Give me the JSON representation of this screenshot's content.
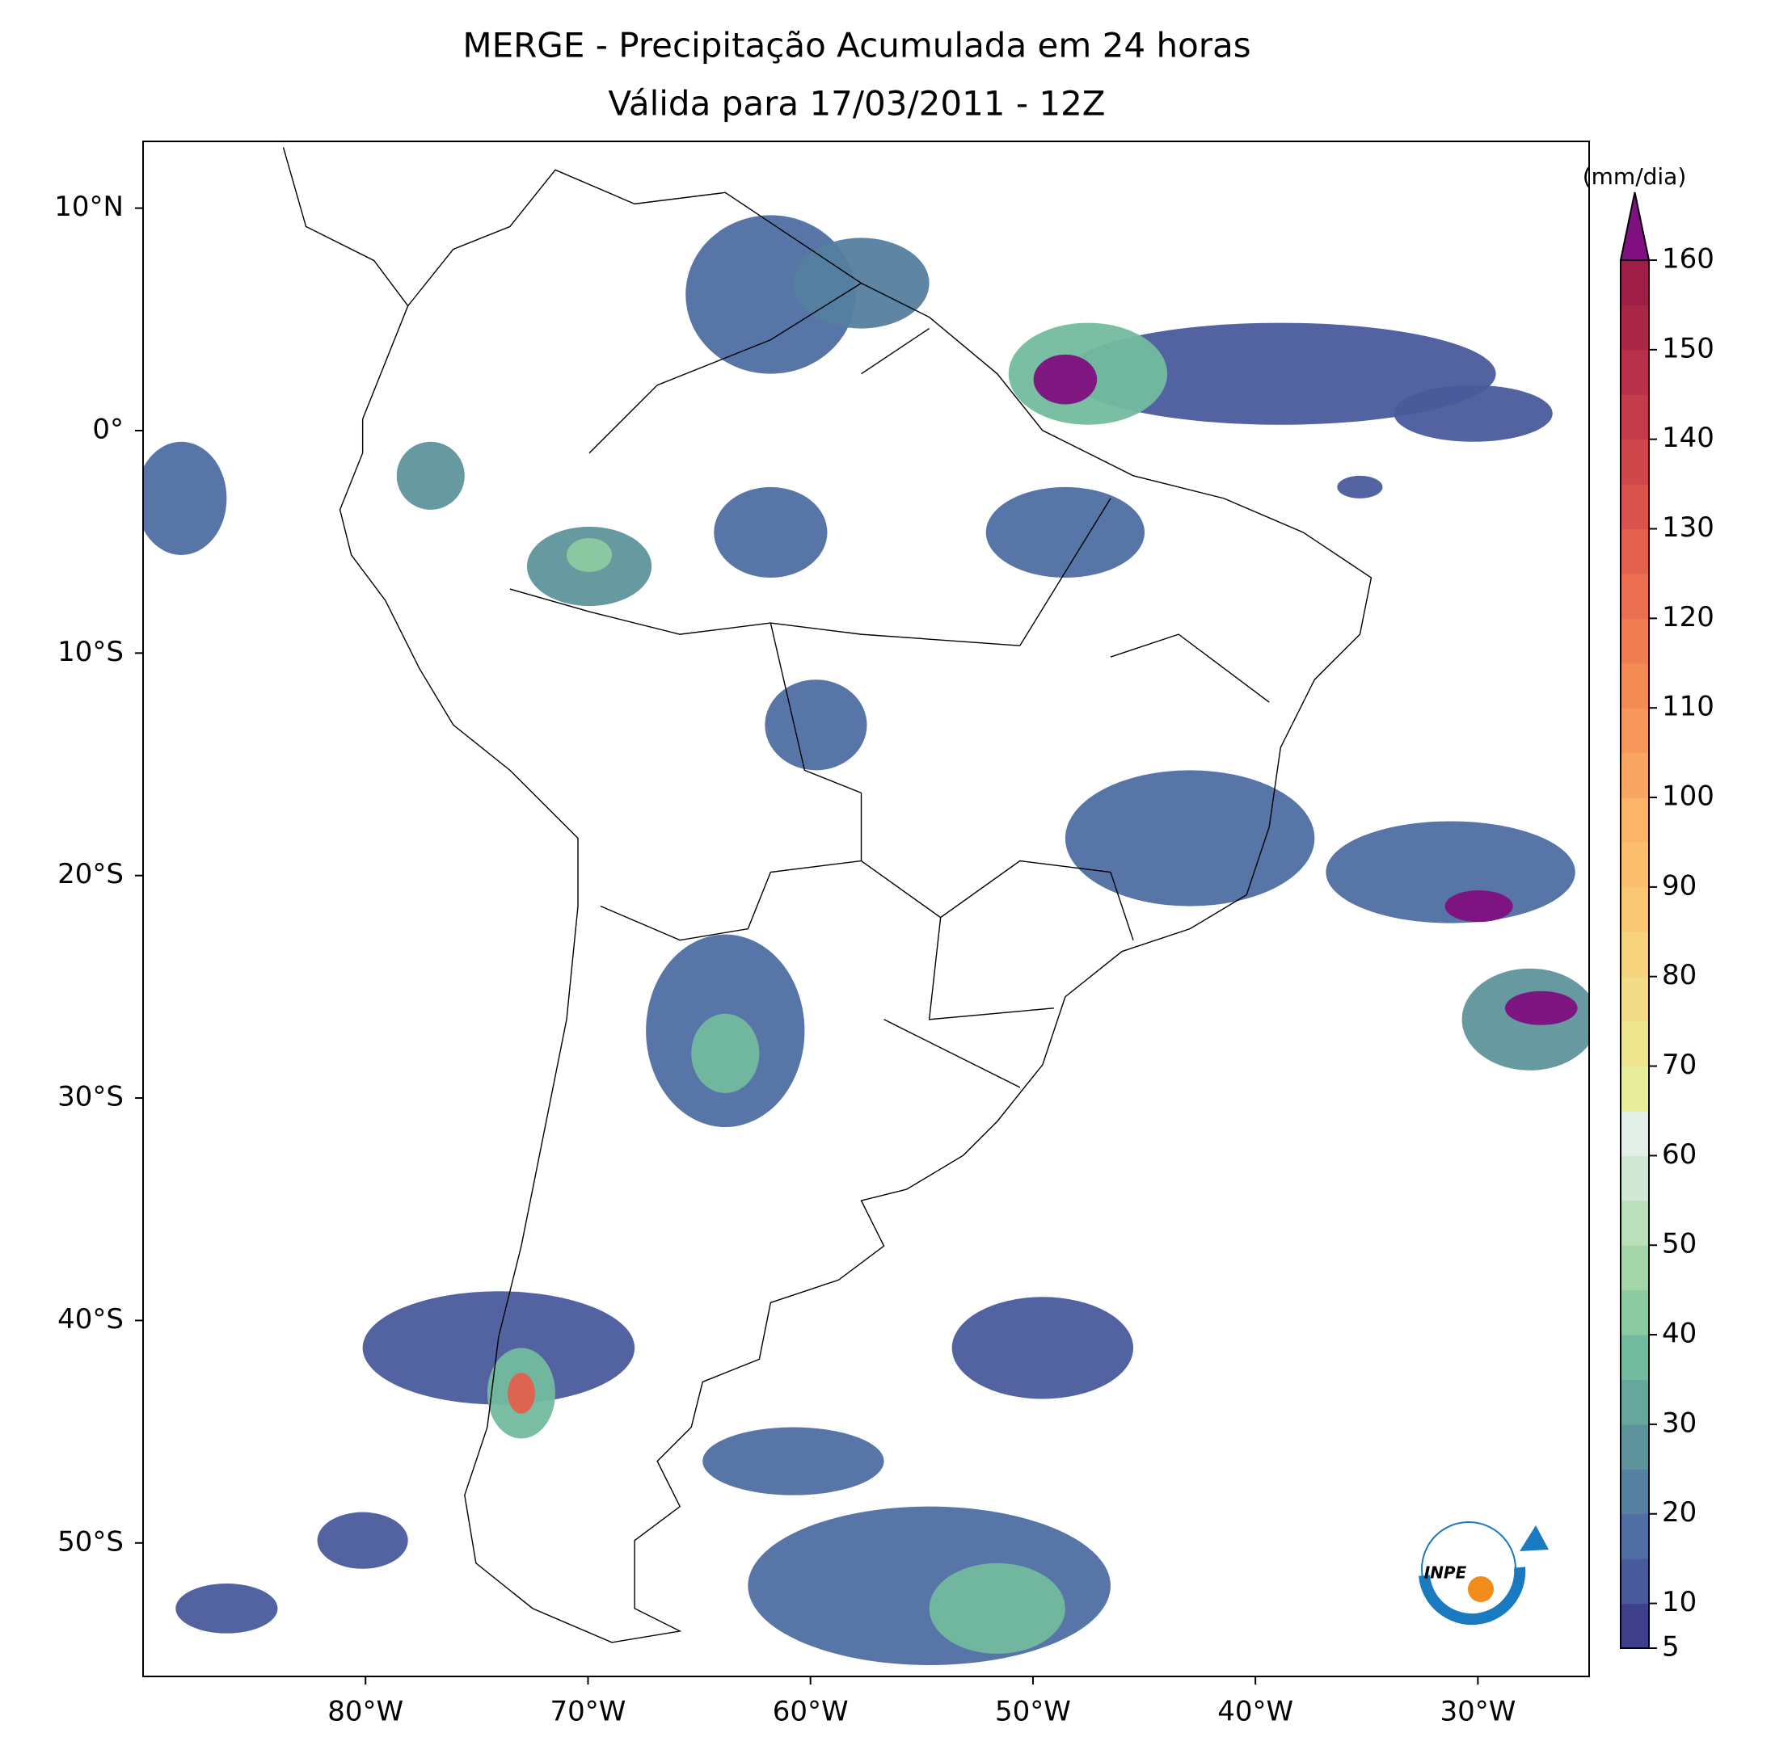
{
  "map": {
    "title": "MERGE - Precipitação Acumulada em 24 horas",
    "subtitle": "Válida para 17/03/2011 - 12Z",
    "xlim": [
      -90,
      -25
    ],
    "ylim": [
      -56,
      13
    ],
    "xticks": [
      {
        "value": -80,
        "label": "80°W"
      },
      {
        "value": -70,
        "label": "70°W"
      },
      {
        "value": -60,
        "label": "60°W"
      },
      {
        "value": -50,
        "label": "50°W"
      },
      {
        "value": -40,
        "label": "40°W"
      },
      {
        "value": -30,
        "label": "30°W"
      }
    ],
    "yticks": [
      {
        "value": 10,
        "label": "10°N"
      },
      {
        "value": 0,
        "label": "0°"
      },
      {
        "value": -10,
        "label": "10°S"
      },
      {
        "value": -20,
        "label": "20°S"
      },
      {
        "value": -30,
        "label": "30°S"
      },
      {
        "value": -40,
        "label": "40°S"
      },
      {
        "value": -50,
        "label": "50°S"
      }
    ],
    "colorbar": {
      "label": "(mm/dia)",
      "clim": [
        5,
        160
      ],
      "ticks": [
        5,
        10,
        20,
        30,
        40,
        50,
        60,
        70,
        80,
        90,
        100,
        110,
        120,
        130,
        140,
        150,
        160
      ],
      "colors": [
        "#3f3f8c",
        "#4a5b9c",
        "#4f6ea3",
        "#55809f",
        "#5f939c",
        "#66a79b",
        "#73bb9e",
        "#8ccaa1",
        "#a4d5a9",
        "#bbdfbb",
        "#cfe7d4",
        "#e3efe8",
        "#e6ee9c",
        "#eee58f",
        "#f3dc87",
        "#f7d37e",
        "#fac874",
        "#fbbf6e",
        "#fbb468",
        "#f9a662",
        "#f7975b",
        "#f48b55",
        "#f07d52",
        "#ea6e4f",
        "#e2604c",
        "#d9534c",
        "#cf474b",
        "#c43b4b",
        "#b8304a",
        "#ab2748",
        "#9e1e48"
      ],
      "over_color": "#800f7f"
    },
    "logo": "INPE"
  }
}
